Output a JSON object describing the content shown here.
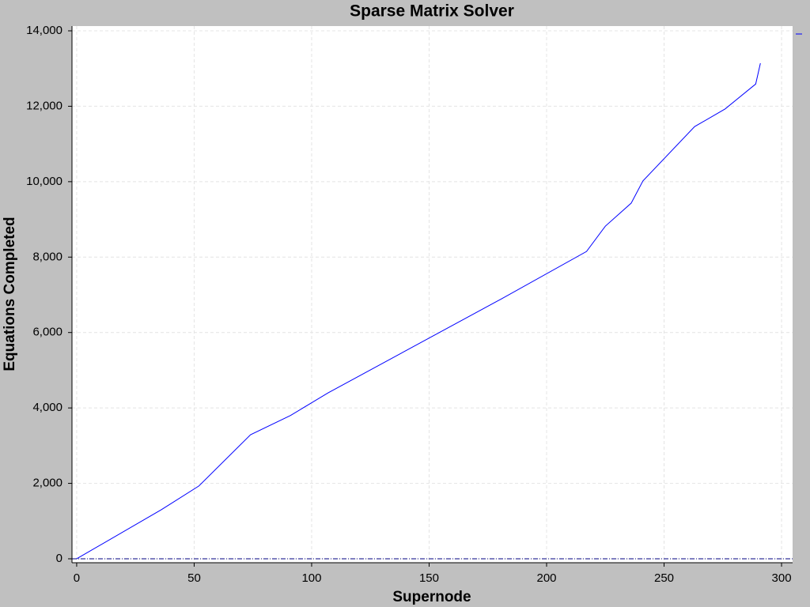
{
  "chart_data": {
    "type": "line",
    "title": "Sparse Matrix Solver",
    "x_label": "Supernode",
    "y_label": "Equations Completed",
    "x": [
      0,
      36,
      52,
      74,
      91,
      107,
      181,
      217,
      225,
      236,
      241,
      263,
      276,
      289,
      291
    ],
    "series": [
      {
        "color": "#0000ff",
        "values": [
          0,
          1300,
          1930,
          3290,
          3800,
          4400,
          6900,
          8150,
          8820,
          9430,
          10020,
          11460,
          11930,
          12590,
          13140
        ]
      }
    ],
    "xlim": [
      -2,
      304.7
    ],
    "ylim": [
      -105,
      14126
    ],
    "xticks": [
      0,
      50,
      100,
      150,
      200,
      250,
      300
    ],
    "yticks": [
      0,
      {
        "value": 2000,
        "label": "2,000"
      },
      {
        "value": 4000,
        "label": "4,000"
      },
      {
        "value": 6000,
        "label": "6,000"
      },
      {
        "value": 8000,
        "label": "8,000"
      },
      {
        "value": 10000,
        "label": "10,000"
      },
      {
        "value": 12000,
        "label": "12,000"
      },
      {
        "value": 14000,
        "label": "14,000"
      }
    ],
    "grid": true
  }
}
